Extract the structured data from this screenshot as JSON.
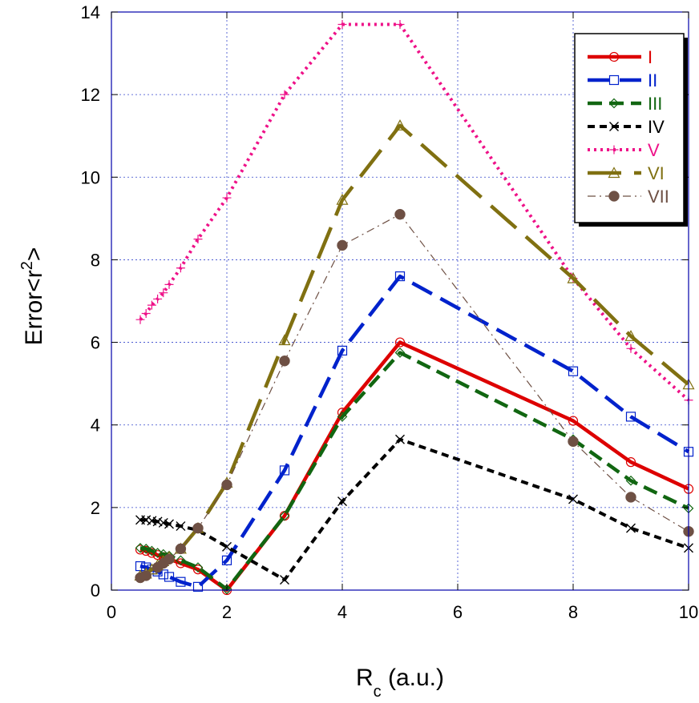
{
  "chart_data": {
    "type": "line",
    "xlabel_main": "R",
    "xlabel_sub": "c",
    "xlabel_rest": " (a.u.)",
    "ylabel_main": "Error<r",
    "ylabel_sup": "2",
    "ylabel_end": ">",
    "xlim": [
      0,
      10
    ],
    "ylim": [
      0,
      14
    ],
    "xticks": [
      0,
      2,
      4,
      6,
      8,
      10
    ],
    "xtick_labels": [
      "0",
      "2",
      "4",
      "6",
      "8",
      "10"
    ],
    "yticks": [
      0,
      2,
      4,
      6,
      8,
      10,
      12,
      14
    ],
    "ytick_labels": [
      "0",
      "2",
      "4",
      "6",
      "8",
      "10",
      "12",
      "14"
    ],
    "grid": true,
    "legend_position": "top-right",
    "series": [
      {
        "name": "I",
        "color": "#dd0000",
        "marker": "circle",
        "dash": "solid",
        "width": 4.5,
        "x": [
          0.5,
          0.6,
          0.7,
          0.8,
          0.9,
          1.0,
          1.2,
          1.5,
          2,
          3,
          4,
          5,
          8,
          9,
          10
        ],
        "y": [
          0.98,
          0.95,
          0.9,
          0.85,
          0.8,
          0.75,
          0.65,
          0.5,
          0.0,
          1.8,
          4.3,
          6.0,
          4.1,
          3.1,
          2.45
        ]
      },
      {
        "name": "II",
        "color": "#0022cc",
        "marker": "square",
        "dash": "long-dash",
        "width": 4.5,
        "x": [
          0.5,
          0.6,
          0.7,
          0.8,
          0.9,
          1.0,
          1.2,
          1.5,
          2,
          3,
          4,
          5,
          8,
          9,
          10
        ],
        "y": [
          0.58,
          0.55,
          0.5,
          0.45,
          0.38,
          0.32,
          0.2,
          0.08,
          0.72,
          2.9,
          5.8,
          7.6,
          5.3,
          4.2,
          3.35
        ]
      },
      {
        "name": "III",
        "color": "#116611",
        "marker": "diamond",
        "dash": "dash",
        "width": 4.5,
        "x": [
          0.5,
          0.6,
          0.7,
          0.8,
          0.9,
          1.0,
          1.2,
          1.5,
          2,
          3,
          4,
          5,
          8,
          9,
          10
        ],
        "y": [
          1.02,
          1.0,
          0.95,
          0.9,
          0.87,
          0.83,
          0.72,
          0.55,
          0.02,
          1.8,
          4.2,
          5.75,
          3.65,
          2.65,
          1.98
        ]
      },
      {
        "name": "IV",
        "color": "#000000",
        "marker": "x",
        "dash": "short-dash",
        "width": 4,
        "x": [
          0.5,
          0.6,
          0.7,
          0.8,
          0.9,
          1.0,
          1.2,
          1.5,
          2,
          3,
          4,
          5,
          8,
          9,
          10
        ],
        "y": [
          1.7,
          1.7,
          1.68,
          1.66,
          1.63,
          1.6,
          1.55,
          1.45,
          1.05,
          0.25,
          2.15,
          3.65,
          2.2,
          1.5,
          1.02
        ]
      },
      {
        "name": "V",
        "color": "#ee1188",
        "marker": "plus",
        "dash": "dot",
        "width": 4,
        "x": [
          0.5,
          0.6,
          0.7,
          0.8,
          0.9,
          1.0,
          1.2,
          1.5,
          2,
          3,
          4,
          5,
          8,
          9,
          10
        ],
        "y": [
          6.55,
          6.7,
          6.9,
          7.05,
          7.2,
          7.4,
          7.8,
          8.5,
          9.5,
          12.0,
          13.7,
          13.7,
          7.55,
          5.85,
          4.6
        ]
      },
      {
        "name": "VI",
        "color": "#807011",
        "marker": "triangle",
        "dash": "very-long-dash",
        "width": 4.5,
        "x": [
          0.5,
          0.6,
          0.7,
          0.8,
          0.9,
          1.0,
          1.2,
          1.5,
          2,
          3,
          4,
          5,
          8,
          9,
          10
        ],
        "y": [
          0.35,
          0.4,
          0.5,
          0.6,
          0.7,
          0.8,
          1.0,
          1.5,
          2.6,
          6.05,
          9.45,
          11.25,
          7.55,
          6.15,
          4.98
        ]
      },
      {
        "name": "VII",
        "color": "#6e5044",
        "marker": "filled-circle",
        "dash": "dash-dot",
        "width": 1.2,
        "x": [
          0.5,
          0.6,
          0.8,
          0.9,
          1.0,
          1.2,
          1.5,
          2,
          3,
          4,
          5,
          8,
          9,
          10
        ],
        "y": [
          0.3,
          0.35,
          0.55,
          0.65,
          0.75,
          1.0,
          1.5,
          2.55,
          5.55,
          8.35,
          9.1,
          3.6,
          2.25,
          1.42
        ]
      }
    ]
  }
}
